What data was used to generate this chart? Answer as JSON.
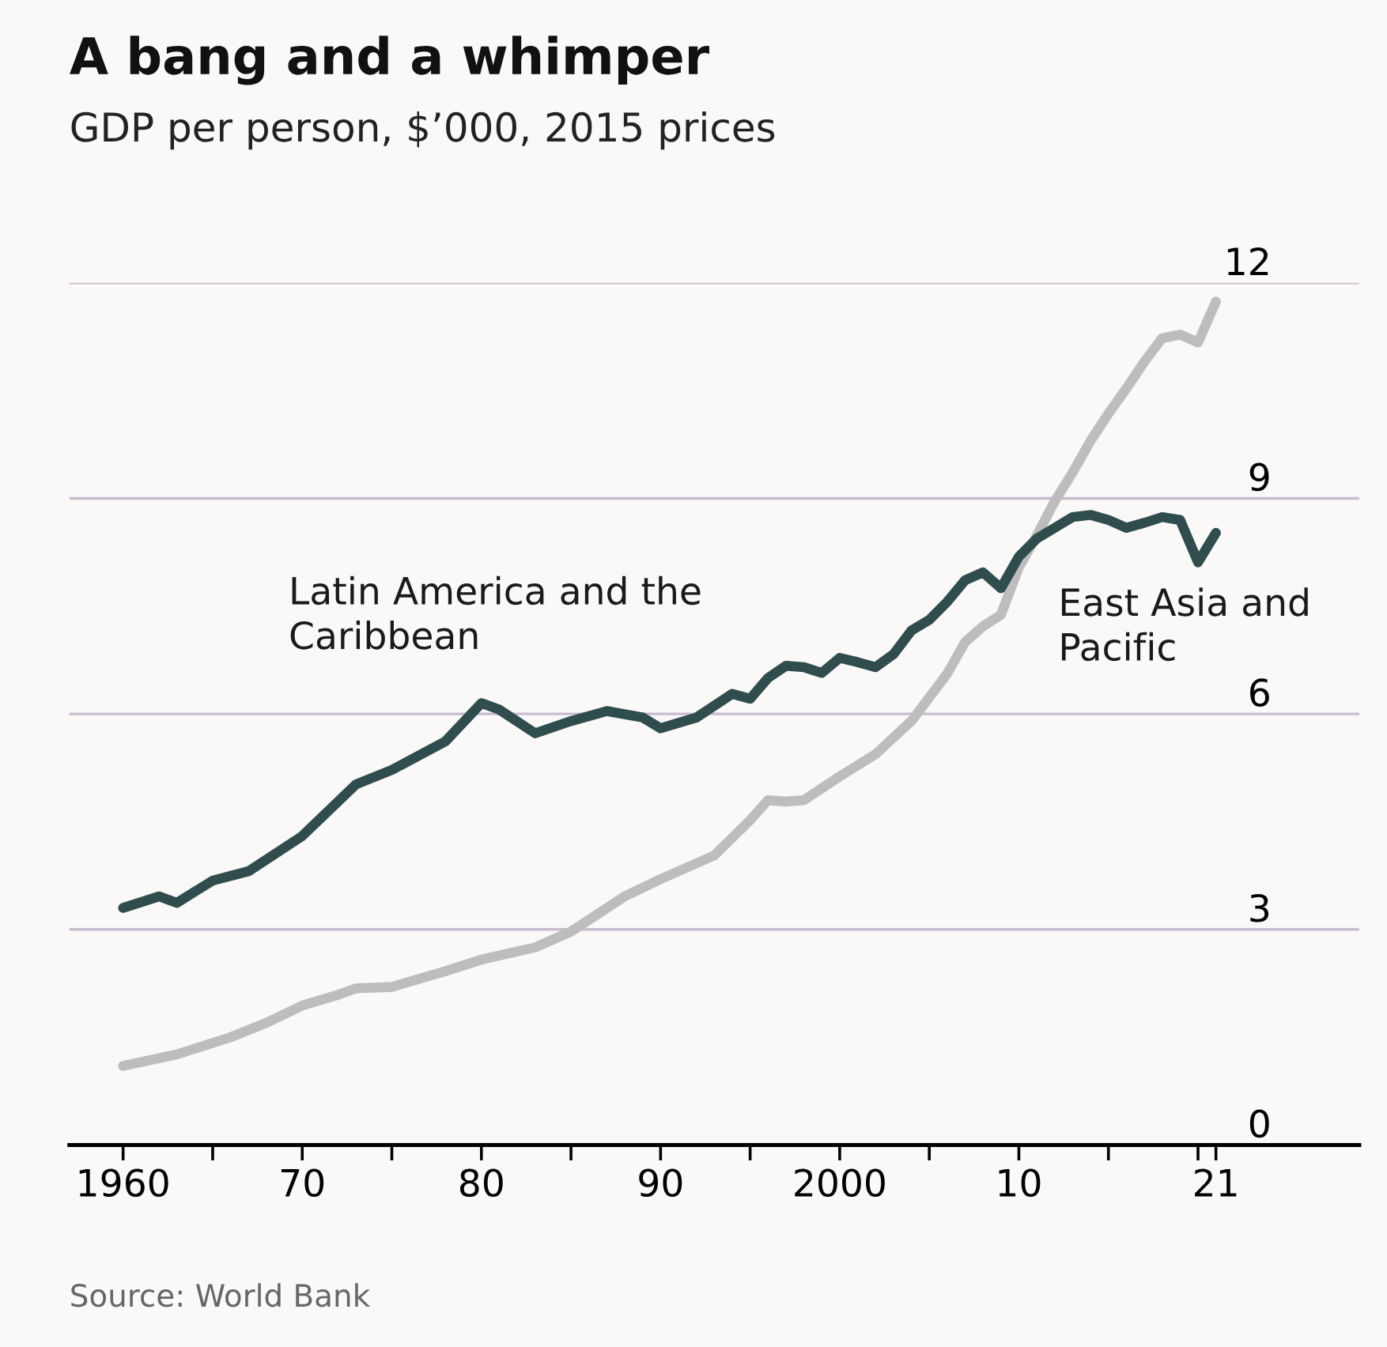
{
  "chart_data": {
    "type": "line",
    "title": "A bang and a whimper",
    "subtitle": "GDP per person, $’000, 2015 prices",
    "annotations": [
      "Source: World Bank"
    ],
    "series": [
      {
        "name": "Latin America and the Caribbean",
        "color": "#2f4d4c",
        "x": [
          1960,
          1962,
          1963,
          1965,
          1967,
          1970,
          1973,
          1975,
          1978,
          1980,
          1981,
          1983,
          1985,
          1987,
          1989,
          1990,
          1992,
          1994,
          1995,
          1996,
          1997,
          1998,
          1999,
          2000,
          2001,
          2002,
          2003,
          2004,
          2005,
          2006,
          2007,
          2008,
          2009,
          2010,
          2011,
          2012,
          2013,
          2014,
          2015,
          2016,
          2017,
          2018,
          2019,
          2020,
          2021
        ],
        "values": [
          3.3,
          3.46,
          3.37,
          3.68,
          3.81,
          4.3,
          5.02,
          5.22,
          5.62,
          6.15,
          6.06,
          5.73,
          5.9,
          6.04,
          5.95,
          5.8,
          5.95,
          6.28,
          6.21,
          6.5,
          6.67,
          6.65,
          6.57,
          6.78,
          6.72,
          6.65,
          6.83,
          7.16,
          7.31,
          7.56,
          7.86,
          7.97,
          7.75,
          8.19,
          8.44,
          8.59,
          8.74,
          8.77,
          8.7,
          8.59,
          8.66,
          8.74,
          8.7,
          8.11,
          8.52
        ]
      },
      {
        "name": "East Asia and Pacific",
        "color": "#bdbdbd",
        "x": [
          1960,
          1963,
          1966,
          1968,
          1970,
          1972,
          1973,
          1975,
          1978,
          1980,
          1983,
          1985,
          1988,
          1990,
          1993,
          1995,
          1996,
          1997,
          1998,
          2000,
          2002,
          2004,
          2006,
          2007,
          2008,
          2009,
          2010,
          2011,
          2012,
          2013,
          2014,
          2015,
          2016,
          2017,
          2018,
          2019,
          2020,
          2021
        ],
        "values": [
          1.1,
          1.26,
          1.5,
          1.7,
          1.94,
          2.09,
          2.18,
          2.2,
          2.42,
          2.58,
          2.75,
          2.97,
          3.46,
          3.7,
          4.03,
          4.52,
          4.8,
          4.78,
          4.8,
          5.13,
          5.44,
          5.9,
          6.56,
          7.0,
          7.22,
          7.38,
          8.04,
          8.48,
          8.96,
          9.36,
          9.8,
          10.18,
          10.53,
          10.9,
          11.23,
          11.28,
          11.17,
          11.74
        ]
      }
    ],
    "xlim": [
      1957,
      2029
    ],
    "xticks": [
      {
        "value": 1960,
        "label": "1960"
      },
      {
        "value": 1965,
        "label": null
      },
      {
        "value": 1970,
        "label": "70"
      },
      {
        "value": 1975,
        "label": null
      },
      {
        "value": 1980,
        "label": "80"
      },
      {
        "value": 1985,
        "label": null
      },
      {
        "value": 1990,
        "label": "90"
      },
      {
        "value": 1995,
        "label": null
      },
      {
        "value": 2000,
        "label": "2000"
      },
      {
        "value": 2005,
        "label": null
      },
      {
        "value": 2010,
        "label": "10"
      },
      {
        "value": 2015,
        "label": null
      },
      {
        "value": 2020,
        "label": null
      },
      {
        "value": 2021,
        "label": "21"
      }
    ],
    "ylim": [
      0,
      12
    ],
    "yticks": [
      0,
      3,
      6,
      9,
      12
    ],
    "grid": "y",
    "legend": false,
    "line_style": "solid",
    "marker": "none"
  }
}
